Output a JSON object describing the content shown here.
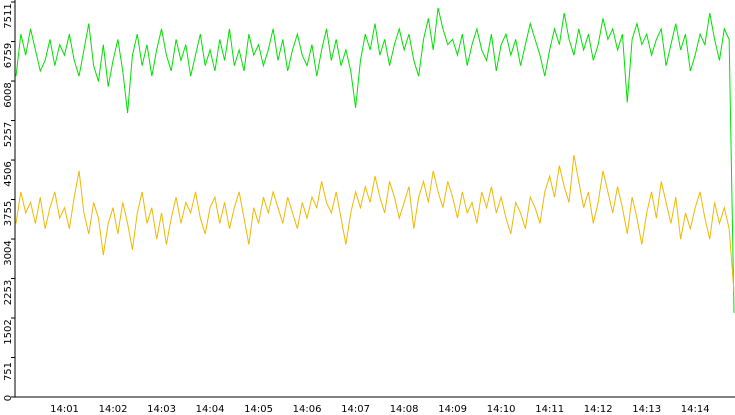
{
  "chart_data": {
    "type": "line",
    "categories": [
      null,
      null,
      null,
      null,
      null,
      null,
      null,
      null,
      null,
      null,
      "14:01",
      null,
      null,
      null,
      null,
      null,
      null,
      null,
      null,
      null,
      "14:02",
      null,
      null,
      null,
      null,
      null,
      null,
      null,
      null,
      null,
      "14:03",
      null,
      null,
      null,
      null,
      null,
      null,
      null,
      null,
      null,
      "14:04",
      null,
      null,
      null,
      null,
      null,
      null,
      null,
      null,
      null,
      "14:05",
      null,
      null,
      null,
      null,
      null,
      null,
      null,
      null,
      null,
      "14:06",
      null,
      null,
      null,
      null,
      null,
      null,
      null,
      null,
      null,
      "14:07",
      null,
      null,
      null,
      null,
      null,
      null,
      null,
      null,
      null,
      "14:08",
      null,
      null,
      null,
      null,
      null,
      null,
      null,
      null,
      null,
      "14:09",
      null,
      null,
      null,
      null,
      null,
      null,
      null,
      null,
      null,
      "14:10",
      null,
      null,
      null,
      null,
      null,
      null,
      null,
      null,
      null,
      "14:11",
      null,
      null,
      null,
      null,
      null,
      null,
      null,
      null,
      null,
      "14:12",
      null,
      null,
      null,
      null,
      null,
      null,
      null,
      null,
      null,
      "14:13",
      null,
      null,
      null,
      null,
      null,
      null,
      null,
      null,
      null,
      "14:14",
      null,
      null,
      null,
      null,
      null,
      null,
      null,
      null
    ],
    "series": [
      {
        "color": "#00e000",
        "values": [
          6100,
          6900,
          6500,
          7000,
          6600,
          6200,
          6400,
          6800,
          6300,
          6700,
          6500,
          6900,
          6400,
          6100,
          6600,
          7100,
          6300,
          6000,
          6700,
          5900,
          6400,
          6800,
          6200,
          5400,
          6500,
          6900,
          6300,
          6700,
          6100,
          6600,
          7000,
          6500,
          6200,
          6800,
          6400,
          6700,
          6100,
          6500,
          6900,
          6300,
          6600,
          6200,
          6800,
          6400,
          7000,
          6300,
          6600,
          6200,
          6900,
          6500,
          6700,
          6300,
          6600,
          7000,
          6400,
          6800,
          6200,
          6600,
          6900,
          6500,
          6300,
          6700,
          6100,
          6600,
          7000,
          6400,
          6800,
          6300,
          6600,
          6200,
          5500,
          6400,
          6900,
          6600,
          7100,
          6500,
          6800,
          6300,
          6700,
          7000,
          6600,
          6900,
          6400,
          6100,
          6800,
          7200,
          6600,
          7400,
          7000,
          6700,
          6800,
          6500,
          6900,
          6300,
          6700,
          7000,
          6600,
          6400,
          6900,
          6200,
          6700,
          6900,
          6500,
          6800,
          6300,
          6700,
          7100,
          6800,
          6500,
          6100,
          6600,
          7000,
          6700,
          7300,
          6800,
          6500,
          7000,
          6600,
          6900,
          6400,
          6700,
          7200,
          6800,
          7000,
          6600,
          6900,
          5600,
          6800,
          7100,
          6700,
          6900,
          6500,
          6800,
          7000,
          6300,
          6700,
          7100,
          6600,
          6900,
          6200,
          6500,
          6900,
          6700,
          7300,
          6800,
          6400,
          7000,
          6800,
          1600
        ]
      },
      {
        "color": "#f0b800",
        "values": [
          3300,
          3900,
          3500,
          3700,
          3300,
          3800,
          3200,
          3600,
          3900,
          3400,
          3600,
          3200,
          3800,
          4300,
          3500,
          3100,
          3700,
          3400,
          2700,
          3300,
          3600,
          3100,
          3700,
          3300,
          2800,
          3500,
          3900,
          3300,
          3600,
          3000,
          3500,
          2900,
          3400,
          3800,
          3300,
          3700,
          3500,
          3900,
          3400,
          3100,
          3600,
          3800,
          3300,
          3700,
          3200,
          3600,
          3900,
          3400,
          2900,
          3600,
          3300,
          3800,
          3500,
          3900,
          3600,
          3300,
          3800,
          3500,
          3200,
          3700,
          3400,
          3800,
          3600,
          4100,
          3700,
          3500,
          3900,
          3400,
          2900,
          3500,
          3900,
          3600,
          4000,
          3700,
          4200,
          3800,
          3500,
          4100,
          3800,
          3400,
          3700,
          4000,
          3200,
          3800,
          4100,
          3700,
          4300,
          3900,
          3600,
          4100,
          3800,
          3400,
          3900,
          3500,
          3700,
          3300,
          3900,
          3600,
          4000,
          3500,
          3800,
          3400,
          3100,
          3700,
          3500,
          3200,
          3800,
          3600,
          3300,
          3900,
          4200,
          3800,
          4400,
          4000,
          3700,
          4600,
          4100,
          3600,
          3900,
          3300,
          3700,
          4300,
          3900,
          3500,
          4000,
          3600,
          3100,
          3800,
          3400,
          2900,
          3500,
          3900,
          3400,
          4100,
          3700,
          3300,
          3800,
          3000,
          3500,
          3200,
          3600,
          3900,
          3400,
          3000,
          3700,
          3300,
          3600,
          3200,
          2000
        ]
      }
    ],
    "ylim": [
      0,
      7511
    ],
    "yticks": [
      0,
      751,
      1502,
      2253,
      3004,
      3755,
      4506,
      5257,
      6008,
      6759,
      7511
    ]
  }
}
